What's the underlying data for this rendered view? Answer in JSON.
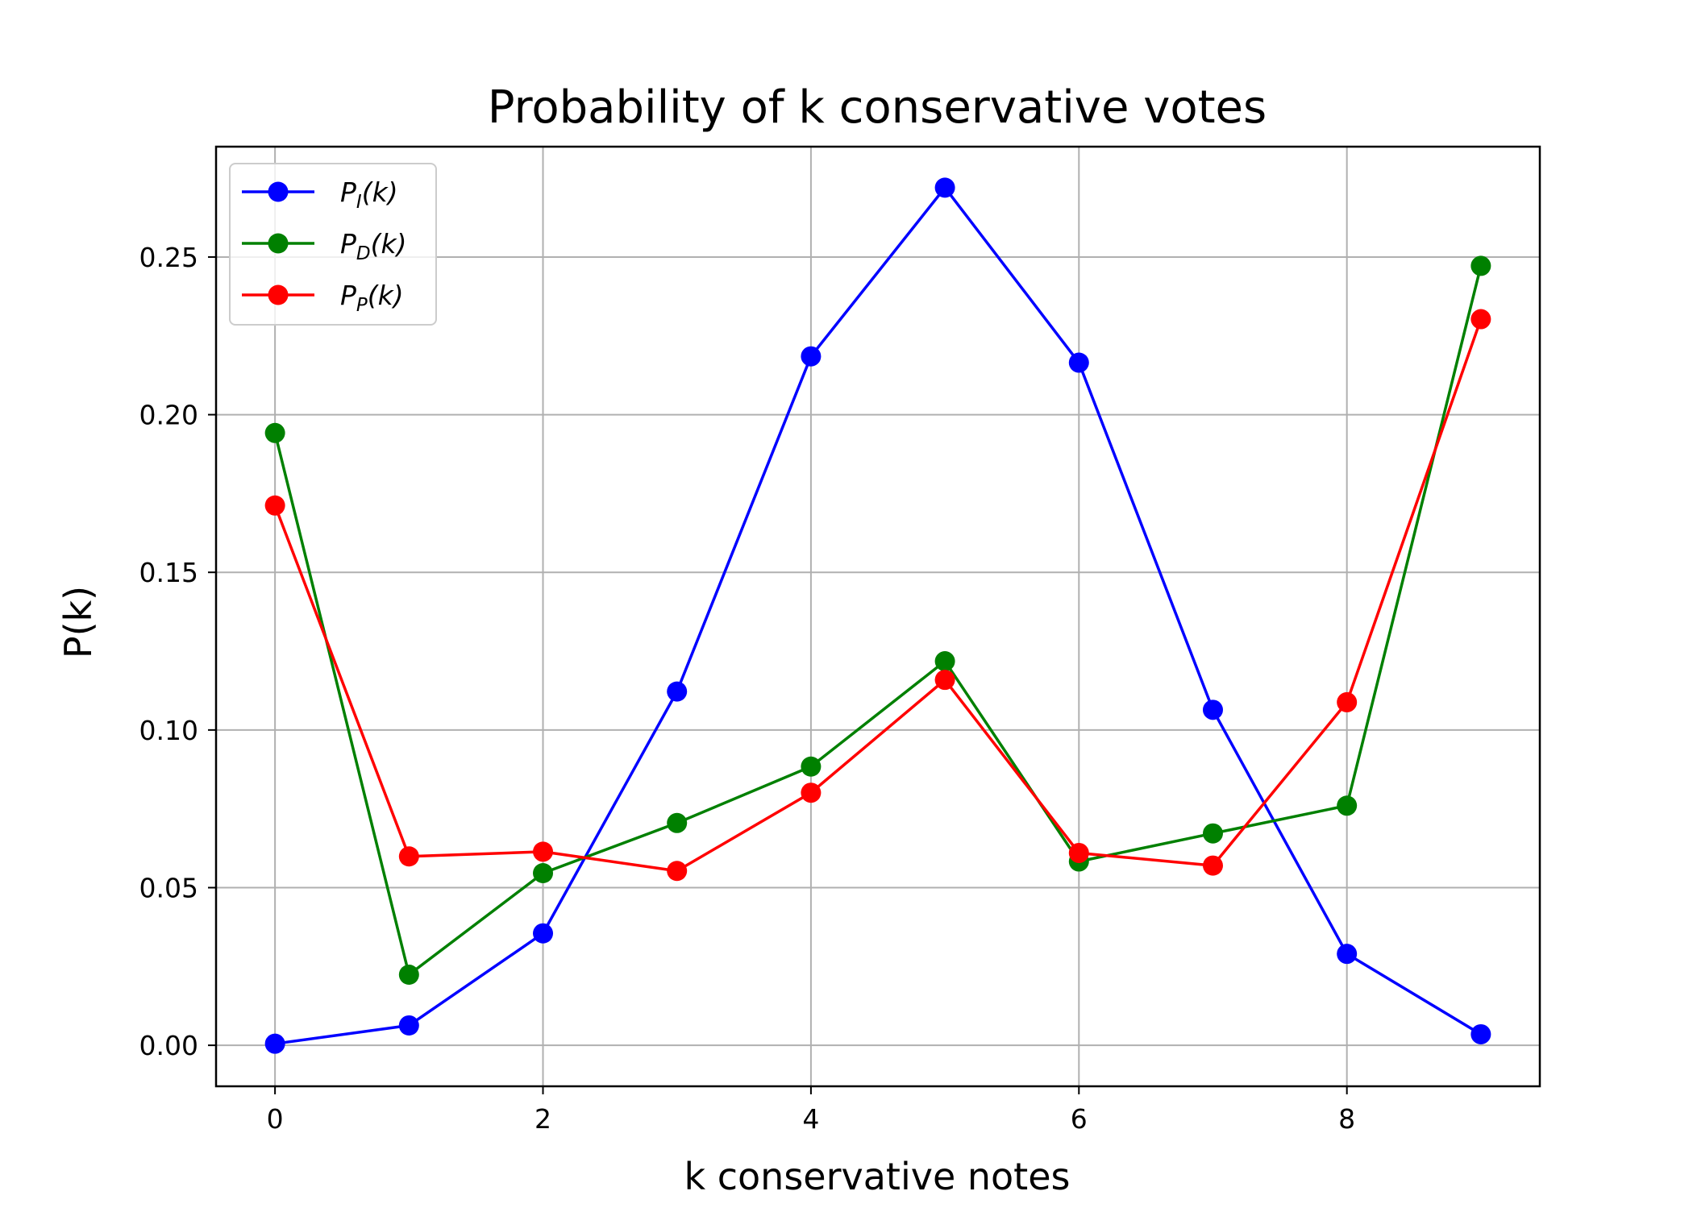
{
  "chart_data": {
    "type": "line",
    "title": "Probability of k conservative votes",
    "xlabel": "k conservative notes",
    "ylabel": "P(k)",
    "x": [
      0,
      1,
      2,
      3,
      4,
      5,
      6,
      7,
      8,
      9
    ],
    "xlim": [
      -0.44,
      9.44
    ],
    "ylim": [
      -0.013,
      0.285
    ],
    "x_ticks": [
      0,
      2,
      4,
      6,
      8
    ],
    "x_tick_labels": [
      "0",
      "2",
      "4",
      "6",
      "8"
    ],
    "y_ticks": [
      0.0,
      0.05,
      0.1,
      0.15,
      0.2,
      0.25
    ],
    "y_tick_labels": [
      "0.00",
      "0.05",
      "0.10",
      "0.15",
      "0.20",
      "0.25"
    ],
    "grid": true,
    "legend_position": "top-left",
    "series": [
      {
        "name": "P_I(k)",
        "legend_main": "P",
        "legend_sub": "I",
        "legend_rest": "(k)",
        "color": "#0000ff",
        "marker": "circle",
        "values": [
          0.0005,
          0.0063,
          0.0355,
          0.1122,
          0.2185,
          0.272,
          0.2165,
          0.1064,
          0.029,
          0.0035
        ]
      },
      {
        "name": "P_D(k)",
        "legend_main": "P",
        "legend_sub": "D",
        "legend_rest": "(k)",
        "color": "#008000",
        "marker": "circle",
        "values": [
          0.1942,
          0.0224,
          0.0546,
          0.0705,
          0.0884,
          0.1218,
          0.0583,
          0.0672,
          0.076,
          0.2472
        ]
      },
      {
        "name": "P_P(k)",
        "legend_main": "P",
        "legend_sub": "P",
        "legend_rest": "(k)",
        "color": "#ff0000",
        "marker": "circle",
        "values": [
          0.1712,
          0.0599,
          0.0614,
          0.0553,
          0.0801,
          0.1159,
          0.061,
          0.057,
          0.1088,
          0.2303
        ]
      }
    ]
  }
}
